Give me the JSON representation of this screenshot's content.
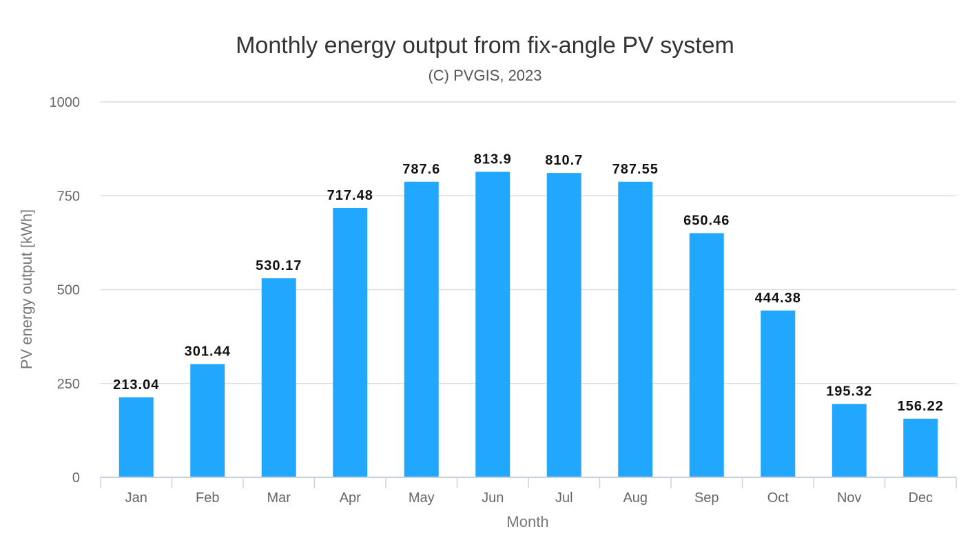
{
  "chart_data": {
    "type": "bar",
    "title": "Monthly energy output from fix-angle PV system",
    "subtitle": "(C) PVGIS, 2023",
    "xlabel": "Month",
    "ylabel": "PV energy output [kWh]",
    "ylim": [
      0,
      1000
    ],
    "yticks": [
      0,
      250,
      500,
      750,
      1000
    ],
    "categories": [
      "Jan",
      "Feb",
      "Mar",
      "Apr",
      "May",
      "Jun",
      "Jul",
      "Aug",
      "Sep",
      "Oct",
      "Nov",
      "Dec"
    ],
    "values": [
      213.04,
      301.44,
      530.17,
      717.48,
      787.6,
      813.9,
      810.7,
      787.55,
      650.46,
      444.38,
      195.32,
      156.22
    ],
    "value_labels": [
      "213.04",
      "301.44",
      "530.17",
      "717.48",
      "787.6",
      "813.9",
      "810.7",
      "787.55",
      "650.46",
      "444.38",
      "195.32",
      "156.22"
    ],
    "bar_color": "#22a7fe",
    "grid": true,
    "legend": "none"
  }
}
